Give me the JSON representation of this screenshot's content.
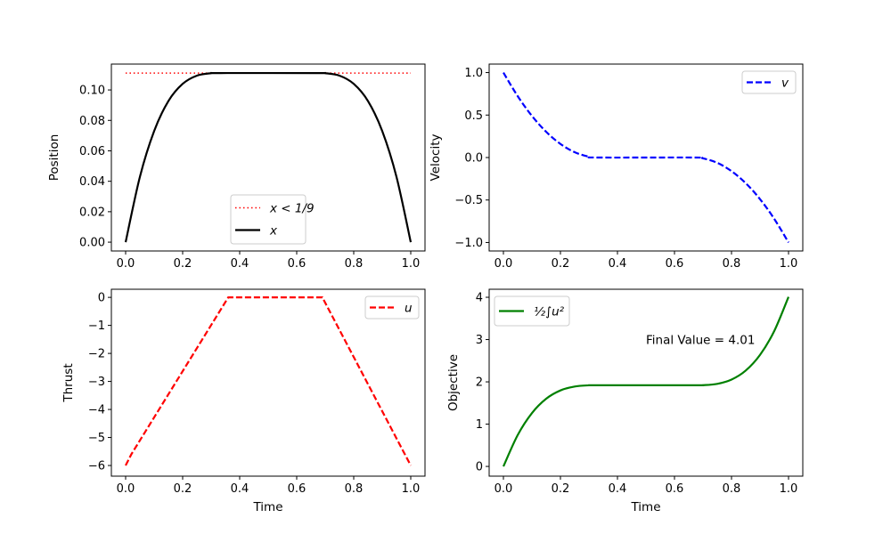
{
  "chart_data": [
    {
      "type": "line",
      "ylabel": "Position",
      "xlabel": "",
      "xlim": [
        -0.05,
        1.05
      ],
      "ylim": [
        -0.0058,
        0.117
      ],
      "xticks": [
        "0.0",
        "0.2",
        "0.4",
        "0.6",
        "0.8",
        "1.0"
      ],
      "yticks": [
        "0.00",
        "0.02",
        "0.04",
        "0.06",
        "0.08",
        "0.10"
      ],
      "legend_position": "lower center",
      "series": [
        {
          "name": "x < 1/9",
          "color": "#ff0000",
          "style": "dotted",
          "x": [
            0,
            1
          ],
          "y": [
            0.1111,
            0.1111
          ]
        },
        {
          "name": "x",
          "color": "#000000",
          "style": "solid",
          "x": [
            0,
            0.05,
            0.1,
            0.15,
            0.2,
            0.25,
            0.3,
            0.333,
            0.667,
            0.7,
            0.75,
            0.8,
            0.85,
            0.9,
            0.95,
            1
          ],
          "y": [
            0,
            0.0429,
            0.073,
            0.0927,
            0.104,
            0.1094,
            0.111,
            0.1111,
            0.1111,
            0.111,
            0.1094,
            0.104,
            0.0927,
            0.073,
            0.0429,
            0
          ]
        }
      ]
    },
    {
      "type": "line",
      "ylabel": "Velocity",
      "xlabel": "",
      "xlim": [
        -0.05,
        1.05
      ],
      "ylim": [
        -1.1,
        1.1
      ],
      "xticks": [
        "0.0",
        "0.2",
        "0.4",
        "0.6",
        "0.8",
        "1.0"
      ],
      "yticks": [
        "−1.0",
        "−0.5",
        "0.0",
        "0.5",
        "1.0"
      ],
      "legend_position": "upper right",
      "series": [
        {
          "name": "v",
          "color": "#0000ff",
          "style": "dashed",
          "x": [
            0,
            0.05,
            0.1,
            0.15,
            0.2,
            0.25,
            0.3,
            0.333,
            0.667,
            0.7,
            0.75,
            0.8,
            0.85,
            0.9,
            0.95,
            1
          ],
          "y": [
            1,
            0.7225,
            0.49,
            0.3025,
            0.16,
            0.0625,
            0.01,
            0,
            0,
            -0.01,
            -0.0625,
            -0.16,
            -0.3025,
            -0.49,
            -0.7225,
            -1
          ]
        }
      ]
    },
    {
      "type": "line",
      "ylabel": "Thrust",
      "xlabel": "Time",
      "xlim": [
        -0.05,
        1.05
      ],
      "ylim": [
        -6.38,
        0.29
      ],
      "xticks": [
        "0.0",
        "0.2",
        "0.4",
        "0.6",
        "0.8",
        "1.0"
      ],
      "yticks": [
        "−6",
        "−5",
        "−4",
        "−3",
        "−2",
        "−1",
        "0"
      ],
      "legend_position": "upper right",
      "series": [
        {
          "name": "u",
          "color": "#ff0000",
          "style": "dashed",
          "linear": true,
          "x": [
            0,
            0.02,
            0.36,
            0.69,
            1
          ],
          "y": [
            -6,
            -5.6,
            0,
            0,
            -6
          ]
        }
      ]
    },
    {
      "type": "line",
      "ylabel": "Objective",
      "xlabel": "Time",
      "xlim": [
        -0.05,
        1.05
      ],
      "ylim": [
        -0.23,
        4.19
      ],
      "xticks": [
        "0.0",
        "0.2",
        "0.4",
        "0.6",
        "0.8",
        "1.0"
      ],
      "yticks": [
        "0",
        "1",
        "2",
        "3",
        "4"
      ],
      "legend_position": "upper left",
      "annotation": {
        "text": "Final Value = 4.01",
        "x": 0.5,
        "y": 3.0
      },
      "series": [
        {
          "name": "½∫u²",
          "color": "#008000",
          "style": "solid",
          "x": [
            0,
            0.05,
            0.1,
            0.15,
            0.2,
            0.25,
            0.3,
            0.333,
            0.667,
            0.7,
            0.75,
            0.8,
            0.85,
            0.9,
            0.95,
            1
          ],
          "y": [
            0,
            0.741,
            1.261,
            1.601,
            1.797,
            1.89,
            1.918,
            1.92,
            1.92,
            1.922,
            1.953,
            2.054,
            2.268,
            2.637,
            3.204,
            4.01
          ]
        }
      ]
    }
  ]
}
